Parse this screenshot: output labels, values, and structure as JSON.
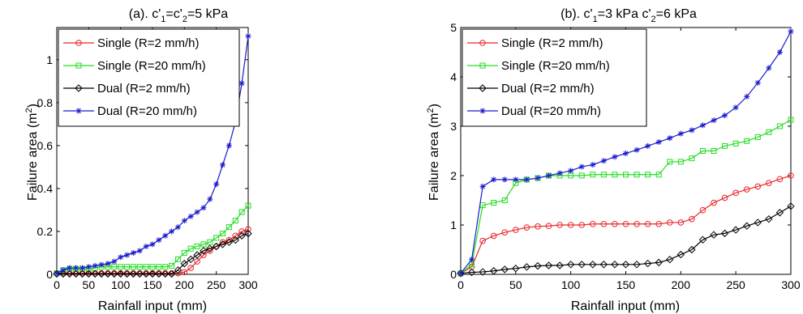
{
  "colors": {
    "red": "#e8262a",
    "green": "#22dd22",
    "black": "#000000",
    "blue": "#1a1acc"
  },
  "chart_data": [
    {
      "type": "line",
      "title_parts": {
        "main": "(a). c'",
        "sub1": "1",
        "mid": "=c'",
        "sub2": "2",
        "tail": "=5 kPa"
      },
      "xlabel": "Rainfall input (mm)",
      "ylabel_parts": {
        "main": "Failure area (m",
        "sup": "2",
        "tail": ")"
      },
      "xlim": [
        0,
        300
      ],
      "ylim": [
        0,
        1.15
      ],
      "xticks": [
        0,
        50,
        100,
        150,
        200,
        250,
        300
      ],
      "xtick_labels": [
        "0",
        "50",
        "100",
        "150",
        "200",
        "250",
        "300"
      ],
      "yticks": [
        0,
        0.2,
        0.4,
        0.6,
        0.8,
        1
      ],
      "ytick_labels": [
        "0",
        "0.2",
        "0.4",
        "0.6",
        "0.8",
        "1"
      ],
      "grid": false,
      "legend_position": "top-left",
      "x": [
        0,
        10,
        20,
        30,
        40,
        50,
        60,
        70,
        80,
        90,
        100,
        110,
        120,
        130,
        140,
        150,
        160,
        170,
        180,
        190,
        200,
        210,
        220,
        230,
        240,
        250,
        260,
        270,
        280,
        290,
        300
      ],
      "series": [
        {
          "name": "Single (R=2 mm/h)",
          "color": "red",
          "marker": "circle",
          "values": [
            0.005,
            0.005,
            0.005,
            0.005,
            0.005,
            0.005,
            0.005,
            0.005,
            0.005,
            0.005,
            0.005,
            0.005,
            0.005,
            0.005,
            0.005,
            0.005,
            0.005,
            0.005,
            0.005,
            0.005,
            0.01,
            0.03,
            0.06,
            0.09,
            0.11,
            0.13,
            0.15,
            0.16,
            0.18,
            0.2,
            0.21
          ]
        },
        {
          "name": "Single (R=20 mm/h)",
          "color": "green",
          "marker": "square",
          "values": [
            0.005,
            0.02,
            0.025,
            0.025,
            0.025,
            0.025,
            0.03,
            0.035,
            0.035,
            0.035,
            0.035,
            0.035,
            0.035,
            0.035,
            0.035,
            0.035,
            0.035,
            0.035,
            0.04,
            0.07,
            0.1,
            0.12,
            0.13,
            0.14,
            0.15,
            0.17,
            0.19,
            0.22,
            0.25,
            0.29,
            0.32
          ]
        },
        {
          "name": "Dual (R=2 mm/h)",
          "color": "black",
          "marker": "diamond",
          "values": [
            0.002,
            0.002,
            0.002,
            0.002,
            0.002,
            0.002,
            0.002,
            0.002,
            0.002,
            0.002,
            0.002,
            0.002,
            0.002,
            0.002,
            0.002,
            0.002,
            0.002,
            0.002,
            0.002,
            0.02,
            0.05,
            0.07,
            0.09,
            0.11,
            0.12,
            0.13,
            0.14,
            0.15,
            0.16,
            0.18,
            0.19
          ]
        },
        {
          "name": "Dual (R=20 mm/h)",
          "color": "blue",
          "marker": "star",
          "values": [
            0.005,
            0.02,
            0.03,
            0.03,
            0.03,
            0.035,
            0.04,
            0.045,
            0.05,
            0.06,
            0.08,
            0.09,
            0.1,
            0.11,
            0.13,
            0.14,
            0.16,
            0.18,
            0.2,
            0.22,
            0.25,
            0.27,
            0.29,
            0.31,
            0.35,
            0.42,
            0.51,
            0.6,
            0.71,
            0.89,
            1.11
          ]
        }
      ]
    },
    {
      "type": "line",
      "title_parts": {
        "main": "(b). c'",
        "sub1": "1",
        "mid": "=3 kPa  c'",
        "sub2": "2",
        "tail": "=6 kPa"
      },
      "xlabel": "Rainfall input (mm)",
      "ylabel_parts": {
        "main": "Failure area (m",
        "sup": "2",
        "tail": ")"
      },
      "xlim": [
        0,
        300
      ],
      "ylim": [
        0,
        5
      ],
      "xticks": [
        0,
        50,
        100,
        150,
        200,
        250,
        300
      ],
      "xtick_labels": [
        "0",
        "50",
        "100",
        "150",
        "200",
        "250",
        "300"
      ],
      "yticks": [
        0,
        1,
        2,
        3,
        4,
        5
      ],
      "ytick_labels": [
        "0",
        "1",
        "2",
        "3",
        "4",
        "5"
      ],
      "grid": false,
      "legend_position": "top-left",
      "x": [
        0,
        10,
        20,
        30,
        40,
        50,
        60,
        70,
        80,
        90,
        100,
        110,
        120,
        130,
        140,
        150,
        160,
        170,
        180,
        190,
        200,
        210,
        220,
        230,
        240,
        250,
        260,
        270,
        280,
        290,
        300
      ],
      "series": [
        {
          "name": "Single (R=2 mm/h)",
          "color": "red",
          "marker": "circle",
          "values": [
            0.02,
            0.15,
            0.68,
            0.78,
            0.85,
            0.9,
            0.95,
            0.97,
            0.98,
            1.0,
            1.0,
            1.0,
            1.02,
            1.02,
            1.02,
            1.02,
            1.02,
            1.02,
            1.02,
            1.05,
            1.05,
            1.12,
            1.3,
            1.45,
            1.55,
            1.65,
            1.72,
            1.78,
            1.85,
            1.93,
            2.0
          ]
        },
        {
          "name": "Single (R=20 mm/h)",
          "color": "green",
          "marker": "square",
          "values": [
            0.02,
            0.2,
            1.4,
            1.45,
            1.5,
            1.85,
            1.92,
            1.95,
            2.0,
            2.0,
            2.0,
            2.0,
            2.02,
            2.02,
            2.02,
            2.02,
            2.02,
            2.02,
            2.02,
            2.28,
            2.28,
            2.35,
            2.5,
            2.5,
            2.6,
            2.65,
            2.7,
            2.78,
            2.88,
            3.0,
            3.13
          ]
        },
        {
          "name": "Dual (R=2 mm/h)",
          "color": "black",
          "marker": "diamond",
          "values": [
            0.02,
            0.04,
            0.05,
            0.07,
            0.1,
            0.12,
            0.15,
            0.17,
            0.18,
            0.18,
            0.2,
            0.2,
            0.2,
            0.2,
            0.2,
            0.2,
            0.2,
            0.22,
            0.24,
            0.3,
            0.4,
            0.5,
            0.7,
            0.8,
            0.83,
            0.9,
            0.98,
            1.05,
            1.12,
            1.25,
            1.38
          ]
        },
        {
          "name": "Dual (R=20 mm/h)",
          "color": "blue",
          "marker": "star",
          "values": [
            0.02,
            0.3,
            1.78,
            1.92,
            1.92,
            1.92,
            1.92,
            1.95,
            2.0,
            2.05,
            2.1,
            2.18,
            2.22,
            2.3,
            2.38,
            2.45,
            2.52,
            2.6,
            2.68,
            2.76,
            2.85,
            2.92,
            3.02,
            3.12,
            3.22,
            3.38,
            3.6,
            3.88,
            4.18,
            4.5,
            4.92
          ]
        }
      ]
    }
  ]
}
